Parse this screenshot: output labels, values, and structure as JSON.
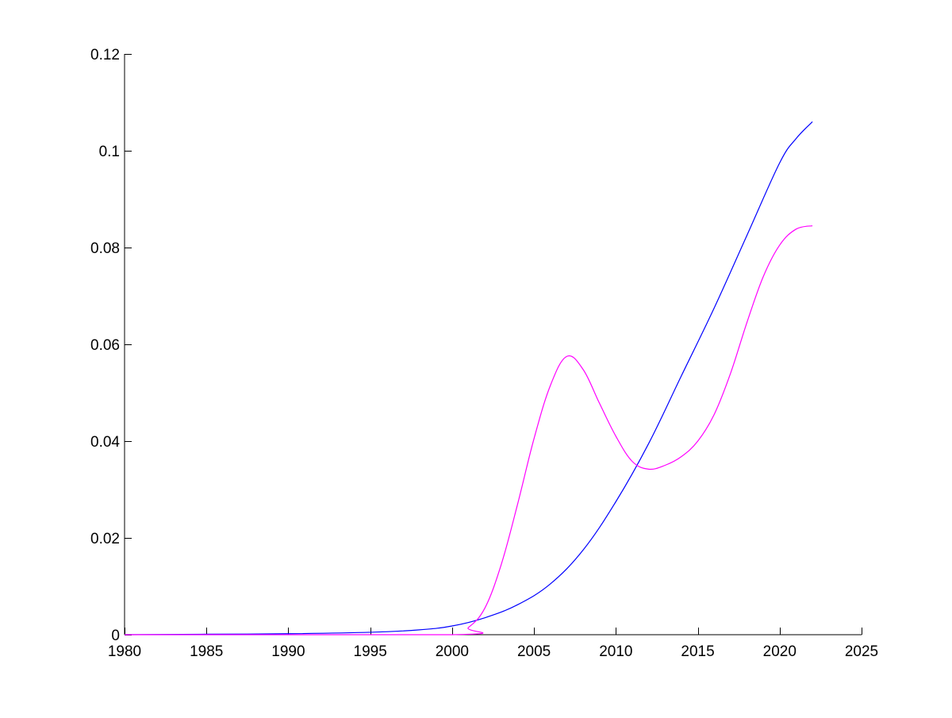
{
  "chart_data": {
    "type": "line",
    "title": "",
    "xlabel": "",
    "ylabel": "",
    "xlim": [
      1980,
      2025
    ],
    "ylim": [
      0,
      0.12
    ],
    "x_ticks": [
      1980,
      1985,
      1990,
      1995,
      2000,
      2005,
      2010,
      2015,
      2020,
      2025
    ],
    "x_tick_labels": [
      "1980",
      "1985",
      "1990",
      "1995",
      "2000",
      "2005",
      "2010",
      "2015",
      "2020",
      "2025"
    ],
    "y_ticks": [
      0,
      0.02,
      0.04,
      0.06,
      0.08,
      0.1,
      0.12
    ],
    "y_tick_labels": [
      "0",
      "0.02",
      "0.04",
      "0.06",
      "0.08",
      "0.1",
      "0.12"
    ],
    "grid": false,
    "legend": "none",
    "series": [
      {
        "color": "#0000ff",
        "x": [
          1980,
          1985,
          1990,
          1995,
          1998,
          2000,
          2002,
          2004,
          2006,
          2008,
          2010,
          2012,
          2014,
          2016,
          2018,
          2020,
          2021,
          2022
        ],
        "y": [
          0,
          0.0001,
          0.0002,
          0.0005,
          0.001,
          0.0018,
          0.0035,
          0.0062,
          0.0105,
          0.0175,
          0.0275,
          0.0395,
          0.0535,
          0.0675,
          0.0825,
          0.0975,
          0.1025,
          0.106
        ]
      },
      {
        "color": "#ff00ff",
        "x": [
          1980,
          2000,
          2001,
          2002,
          2003,
          2004,
          2005,
          2006,
          2007,
          2008,
          2009,
          2010,
          2011,
          2012,
          2013,
          2014,
          2015,
          2016,
          2017,
          2018,
          2019,
          2020,
          2021,
          2022
        ],
        "y": [
          0,
          0,
          0.0015,
          0.0055,
          0.0145,
          0.027,
          0.0405,
          0.0515,
          0.0575,
          0.0548,
          0.0478,
          0.041,
          0.0358,
          0.0342,
          0.035,
          0.0368,
          0.04,
          0.0455,
          0.054,
          0.0645,
          0.074,
          0.0805,
          0.0838,
          0.0845
        ]
      }
    ]
  }
}
